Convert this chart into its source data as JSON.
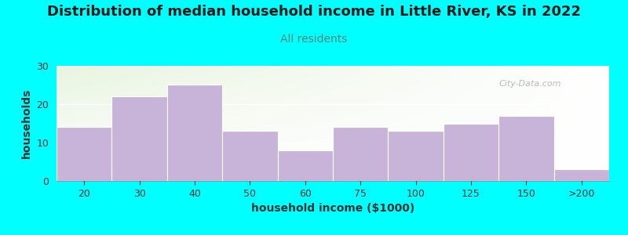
{
  "title": "Distribution of median household income in Little River, KS in 2022",
  "subtitle": "All residents",
  "xlabel": "household income ($1000)",
  "ylabel": "households",
  "background_color": "#00FFFF",
  "bar_color": "#c8b4d8",
  "bar_edge_color": "#c8b4d8",
  "categories": [
    "20",
    "30",
    "40",
    "50",
    "60",
    "75",
    "100",
    "125",
    "150",
    ">200"
  ],
  "values": [
    14,
    22,
    25,
    13,
    8,
    14,
    13,
    15,
    17,
    3
  ],
  "ylim": [
    0,
    30
  ],
  "yticks": [
    0,
    10,
    20,
    30
  ],
  "title_fontsize": 13,
  "subtitle_fontsize": 10,
  "axis_label_fontsize": 10,
  "watermark": "City-Data.com"
}
